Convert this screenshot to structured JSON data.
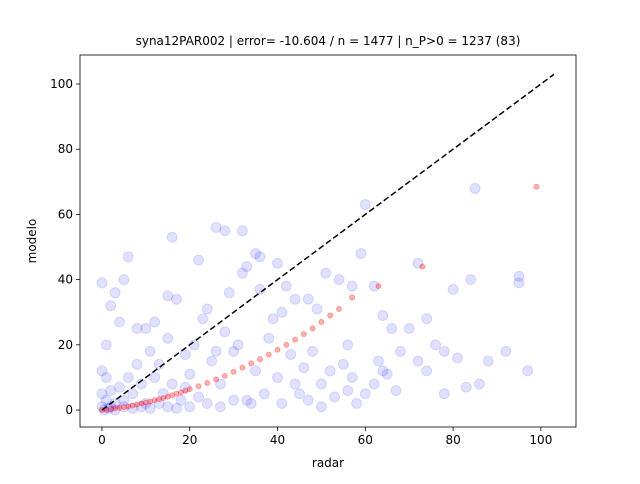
{
  "chart_data": {
    "type": "scatter",
    "title": "syna12PAR002 | error= -10.604 / n = 1477 | n_P>0 = 1237 (83)",
    "x_label": "radar",
    "y_label": "modelo",
    "xlim": [
      -5,
      108
    ],
    "ylim": [
      -5.2,
      108.9
    ],
    "xticks": [
      0,
      20,
      40,
      60,
      80,
      100
    ],
    "yticks": [
      0,
      20,
      40,
      60,
      80,
      100
    ],
    "grid": false,
    "series": [
      {
        "color": "#0000ff",
        "alpha": 0.12,
        "marker_size": 5,
        "x": [
          0,
          1,
          2,
          3,
          5,
          6,
          4,
          8,
          10,
          12,
          16,
          15,
          17,
          22,
          26,
          28,
          32,
          35,
          36,
          32,
          33,
          40,
          42,
          44,
          47,
          51,
          54,
          59,
          60,
          57,
          62,
          64,
          66,
          70,
          72,
          74,
          76,
          78,
          81,
          80,
          84,
          85,
          86,
          95,
          95,
          83,
          72,
          74,
          68,
          64,
          62,
          60,
          63,
          58,
          55,
          56,
          57,
          50,
          52,
          48,
          46,
          45,
          43,
          40,
          38,
          35,
          33,
          30,
          28,
          27,
          25,
          23,
          21,
          20,
          18,
          19,
          16,
          15,
          14,
          13,
          12,
          11,
          10,
          9,
          8,
          7,
          6,
          5,
          4,
          3,
          2,
          2,
          1,
          1,
          0,
          0,
          0,
          0.5,
          1.5,
          3,
          5,
          7,
          9,
          11,
          13,
          15,
          17,
          20,
          24,
          27,
          30,
          34,
          37,
          41,
          44,
          47,
          50,
          53,
          56,
          39,
          41,
          49,
          36,
          29,
          24,
          31,
          26,
          22,
          19,
          65,
          67,
          78,
          88,
          92,
          97
        ],
        "values": [
          39,
          20,
          32,
          36,
          40,
          47,
          27,
          25,
          25,
          27,
          53,
          35,
          34,
          46,
          56,
          55,
          55,
          48,
          47,
          42,
          44,
          45,
          38,
          34,
          34,
          42,
          40,
          48,
          63,
          38,
          38,
          29,
          25,
          25,
          45,
          28,
          20,
          18,
          16,
          37,
          40,
          68,
          8,
          39,
          41,
          7,
          15,
          12,
          18,
          12,
          8,
          5,
          15,
          2,
          14,
          20,
          10,
          8,
          12,
          18,
          13,
          5,
          17,
          10,
          22,
          12,
          3,
          18,
          24,
          8,
          15,
          28,
          20,
          11,
          3,
          17,
          8,
          22,
          5,
          14,
          10,
          18,
          2,
          8,
          14,
          5,
          10,
          3,
          7,
          2,
          6,
          1,
          3,
          10,
          1,
          5,
          12,
          0,
          0.5,
          0,
          1,
          0.5,
          1,
          0.5,
          2,
          1,
          0.5,
          1,
          2,
          1,
          3,
          2,
          5,
          2,
          8,
          3,
          1,
          4,
          6,
          28,
          30,
          31,
          37,
          36,
          31,
          20,
          18,
          4,
          7,
          11,
          6,
          5,
          15,
          18,
          12
        ]
      },
      {
        "color": "#ff0000",
        "alpha": 0.3,
        "marker_size": 2.5,
        "x": [
          0,
          1,
          2,
          3,
          4,
          5,
          6,
          7,
          8,
          9,
          10,
          11,
          12,
          13,
          14,
          15,
          16,
          17,
          18,
          19,
          20,
          22,
          24,
          26,
          28,
          30,
          32,
          34,
          36,
          38,
          40,
          42,
          44,
          46,
          48,
          50,
          52,
          54,
          57,
          63,
          73,
          99
        ],
        "values": [
          0,
          0.1,
          0.3,
          0.5,
          0.7,
          0.9,
          1.1,
          1.4,
          1.7,
          2,
          2.3,
          2.6,
          3,
          3.3,
          3.7,
          4.1,
          4.5,
          5,
          5.4,
          5.9,
          6.4,
          7.3,
          8.3,
          9.4,
          10.5,
          11.7,
          13,
          14.3,
          15.6,
          17,
          18.5,
          20,
          21.6,
          23.3,
          25,
          27,
          29,
          31,
          34.5,
          38,
          44,
          68.5
        ]
      },
      {
        "color": "#000000",
        "line_style": "dashed",
        "x": [
          0,
          103
        ],
        "values": [
          0,
          103
        ]
      }
    ]
  }
}
